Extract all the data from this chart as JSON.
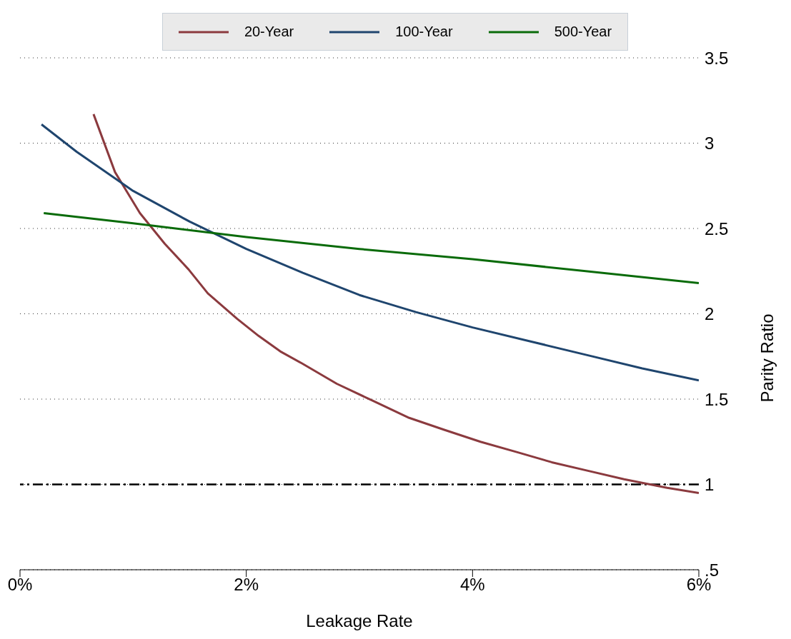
{
  "chart_data": {
    "type": "line",
    "xlabel": "Leakage Rate",
    "ylabel": "Parity Ratio",
    "xlim": [
      0,
      6
    ],
    "xticks": [
      {
        "value": 0,
        "label": "0%"
      },
      {
        "value": 2,
        "label": "2%"
      },
      {
        "value": 4,
        "label": "4%"
      },
      {
        "value": 6,
        "label": "6%"
      }
    ],
    "ylim": [
      0.5,
      3.5
    ],
    "yticks": [
      {
        "value": 0.5,
        "label": ".5"
      },
      1,
      1.5,
      2,
      2.5,
      3,
      3.5
    ],
    "grid": "y",
    "legend": "top",
    "line_style": "solid",
    "marker": "none",
    "ref_lines": [
      {
        "axis": "y",
        "value": 1,
        "color": "#000000",
        "line_style": "dashdot"
      }
    ],
    "series": [
      {
        "name": "20-Year",
        "color": "#8b3a3e",
        "x": [
          0.65,
          0.84,
          1.06,
          1.28,
          1.49,
          1.66,
          1.92,
          2.11,
          2.3,
          2.49,
          2.8,
          3.12,
          3.44,
          3.75,
          4.07,
          4.39,
          4.7,
          5.02,
          5.34,
          5.72,
          6.0
        ],
        "values": [
          3.17,
          2.83,
          2.59,
          2.41,
          2.26,
          2.12,
          1.97,
          1.87,
          1.78,
          1.71,
          1.59,
          1.49,
          1.39,
          1.32,
          1.25,
          1.19,
          1.13,
          1.08,
          1.03,
          0.98,
          0.95
        ]
      },
      {
        "name": "100-Year",
        "color": "#1f456e",
        "x": [
          0.19,
          0.5,
          1.0,
          1.5,
          2.0,
          2.5,
          3.0,
          3.5,
          4.0,
          4.5,
          5.0,
          5.5,
          6.0
        ],
        "values": [
          3.11,
          2.95,
          2.72,
          2.54,
          2.38,
          2.24,
          2.11,
          2.01,
          1.92,
          1.84,
          1.76,
          1.68,
          1.61
        ]
      },
      {
        "name": "500-Year",
        "color": "#0a6b0a",
        "x": [
          0.21,
          1.0,
          2.0,
          3.0,
          4.0,
          5.0,
          6.0
        ],
        "values": [
          2.59,
          2.53,
          2.45,
          2.38,
          2.32,
          2.25,
          2.18
        ]
      }
    ]
  }
}
